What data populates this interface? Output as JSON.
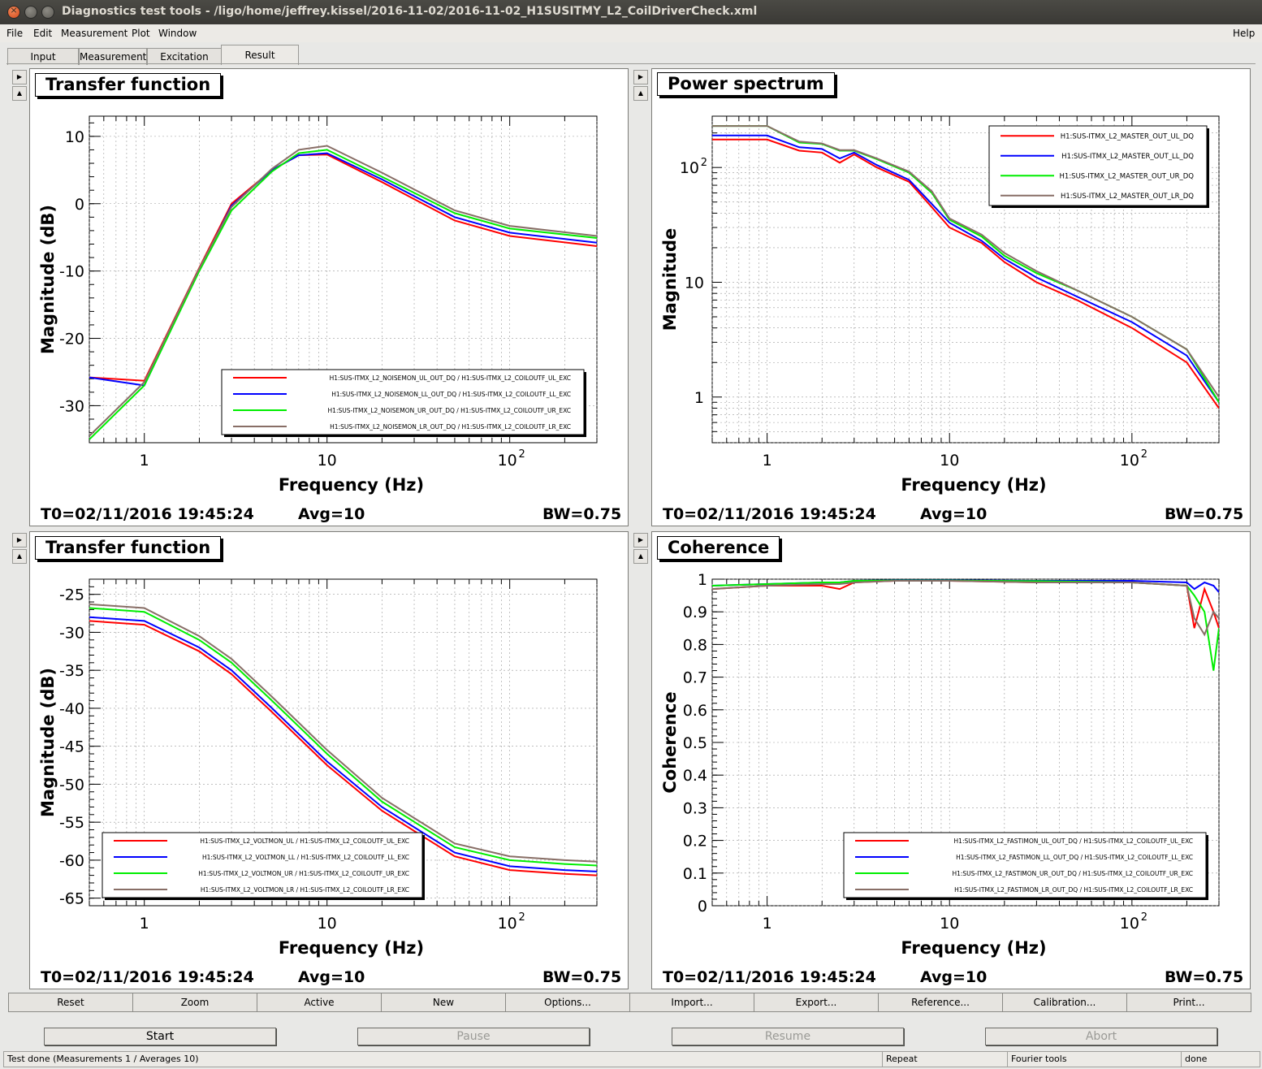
{
  "window": {
    "title": "Diagnostics test tools - /ligo/home/jeffrey.kissel/2016-11-02/2016-11-02_H1SUSITMY_L2_CoilDriverCheck.xml"
  },
  "menu": {
    "items": [
      "File",
      "Edit",
      "Measurement",
      "Plot",
      "Window"
    ],
    "help": "Help"
  },
  "tabs": [
    "Input",
    "Measurement",
    "Excitation",
    "Result"
  ],
  "active_tab": "Result",
  "panels": [
    {
      "title": "Transfer function",
      "t0": "T0=02/11/2016 19:45:24",
      "avg": "Avg=10",
      "bw": "BW=0.75"
    },
    {
      "title": "Power spectrum",
      "t0": "T0=02/11/2016 19:45:24",
      "avg": "Avg=10",
      "bw": "BW=0.75"
    },
    {
      "title": "Transfer function",
      "t0": "T0=02/11/2016 19:45:24",
      "avg": "Avg=10",
      "bw": "BW=0.75"
    },
    {
      "title": "Coherence",
      "t0": "T0=02/11/2016 19:45:24",
      "avg": "Avg=10",
      "bw": "BW=0.75"
    }
  ],
  "toolbar": [
    "Reset",
    "Zoom",
    "Active",
    "New",
    "Options...",
    "Import...",
    "Export...",
    "Reference...",
    "Calibration...",
    "Print..."
  ],
  "controls": {
    "start": "Start",
    "pause": "Pause",
    "resume": "Resume",
    "abort": "Abort"
  },
  "status": {
    "main": "Test done (Measurements 1 / Averages 10)",
    "mode": "Repeat",
    "tool": "Fourier tools",
    "state": "done"
  },
  "chart_data": [
    {
      "type": "line",
      "title": "Transfer function",
      "xlabel": "Frequency (Hz)",
      "ylabel": "Magnitude (dB)",
      "xscale": "log",
      "xlim": [
        0.5,
        300
      ],
      "ylim": [
        -35.5,
        13
      ],
      "xticks": [
        "1",
        "10",
        "10^2"
      ],
      "yticks": [
        10,
        0,
        -10,
        -20,
        -30
      ],
      "grid": true,
      "legend": "bottom-right",
      "x": [
        0.5,
        1,
        2,
        3,
        5,
        7,
        10,
        20,
        50,
        100,
        300
      ],
      "series": [
        {
          "name": "H1:SUS-ITMX_L2_NOISEMON_UL_OUT_DQ / H1:SUS-ITMX_L2_COILOUTF_UL_EXC",
          "color": "#ff0000",
          "values": [
            -25.8,
            -26.3,
            -9.5,
            0,
            5,
            7.2,
            7.3,
            3.2,
            -2.5,
            -4.8,
            -6.3
          ]
        },
        {
          "name": "H1:SUS-ITMX_L2_NOISEMON_LL_OUT_DQ / H1:SUS-ITMX_L2_COILOUTF_LL_EXC",
          "color": "#0000ff",
          "values": [
            -25.8,
            -27.0,
            -9.8,
            -0.3,
            5,
            7.2,
            7.5,
            3.6,
            -2.0,
            -4.3,
            -5.8
          ]
        },
        {
          "name": "H1:SUS-ITMX_L2_NOISEMON_UR_OUT_DQ / H1:SUS-ITMX_L2_COILOUTF_UR_EXC",
          "color": "#00ee00",
          "values": [
            -35.0,
            -27.0,
            -10.0,
            -1.0,
            4.8,
            7.5,
            8.0,
            4.0,
            -1.4,
            -3.7,
            -5.1
          ]
        },
        {
          "name": "H1:SUS-ITMX_L2_NOISEMON_LR_OUT_DQ / H1:SUS-ITMX_L2_COILOUTF_LR_EXC",
          "color": "#886e66",
          "values": [
            -34.5,
            -26.5,
            -9.6,
            -0.5,
            5.2,
            8.0,
            8.6,
            4.6,
            -1.0,
            -3.3,
            -4.8
          ]
        }
      ]
    },
    {
      "type": "line",
      "title": "Power spectrum",
      "xlabel": "Frequency (Hz)",
      "ylabel": "Magnitude",
      "xscale": "log",
      "yscale": "log",
      "xlim": [
        0.5,
        300
      ],
      "ylim": [
        0.4,
        280
      ],
      "xticks": [
        "1",
        "10",
        "10^2"
      ],
      "yticks": [
        "1",
        "10",
        "10^2"
      ],
      "grid": true,
      "legend": "top-right",
      "x": [
        0.5,
        1,
        1.5,
        2,
        2.5,
        3,
        4,
        6,
        8,
        10,
        15,
        20,
        30,
        50,
        100,
        200,
        300
      ],
      "series": [
        {
          "name": "H1:SUS-ITMX_L2_MASTER_OUT_UL_DQ",
          "color": "#ff0000",
          "values": [
            175,
            175,
            140,
            135,
            110,
            130,
            100,
            75,
            45,
            30,
            22,
            15,
            10,
            7,
            4,
            2,
            0.8
          ]
        },
        {
          "name": "H1:SUS-ITMX_L2_MASTER_OUT_LL_DQ",
          "color": "#0000ff",
          "values": [
            190,
            190,
            150,
            145,
            120,
            135,
            105,
            78,
            48,
            33,
            23,
            16,
            11,
            7.5,
            4.5,
            2.3,
            0.9
          ]
        },
        {
          "name": "H1:SUS-ITMX_L2_MASTER_OUT_UR_DQ",
          "color": "#00ee00",
          "values": [
            230,
            230,
            165,
            160,
            140,
            140,
            118,
            90,
            60,
            35,
            25,
            17,
            12,
            8.5,
            5,
            2.6,
            0.9
          ]
        },
        {
          "name": "H1:SUS-ITMX_L2_MASTER_OUT_LR_DQ",
          "color": "#886e66",
          "values": [
            230,
            230,
            168,
            162,
            142,
            142,
            120,
            92,
            62,
            36,
            26,
            18,
            12.5,
            8.5,
            5,
            2.6,
            1.0
          ]
        }
      ]
    },
    {
      "type": "line",
      "title": "Transfer function",
      "xlabel": "Frequency (Hz)",
      "ylabel": "Magnitude (dB)",
      "xscale": "log",
      "xlim": [
        0.5,
        300
      ],
      "ylim": [
        -66,
        -23
      ],
      "xticks": [
        "1",
        "10",
        "10^2"
      ],
      "yticks": [
        -25,
        -30,
        -35,
        -40,
        -45,
        -50,
        -55,
        -60,
        -65
      ],
      "grid": true,
      "legend": "bottom-left",
      "x": [
        0.5,
        1,
        2,
        3,
        5,
        10,
        20,
        50,
        100,
        200,
        300
      ],
      "series": [
        {
          "name": "H1:SUS-ITMX_L2_VOLTMON_UL / H1:SUS-ITMX_L2_COILOUTF_UL_EXC",
          "color": "#ff0000",
          "values": [
            -28.5,
            -29,
            -32.5,
            -35.5,
            -40.5,
            -47.5,
            -53.5,
            -59.5,
            -61.3,
            -61.8,
            -62
          ]
        },
        {
          "name": "H1:SUS-ITMX_L2_VOLTMON_LL / H1:SUS-ITMX_L2_COILOUTF_LL_EXC",
          "color": "#0000ff",
          "values": [
            -28,
            -28.5,
            -32,
            -35,
            -40,
            -47,
            -53,
            -59,
            -60.8,
            -61.3,
            -61.5
          ]
        },
        {
          "name": "H1:SUS-ITMX_L2_VOLTMON_UR / H1:SUS-ITMX_L2_COILOUTF_UR_EXC",
          "color": "#00ee00",
          "values": [
            -26.8,
            -27.3,
            -31,
            -34,
            -39,
            -46,
            -52.3,
            -58.3,
            -60,
            -60.5,
            -60.7
          ]
        },
        {
          "name": "H1:SUS-ITMX_L2_VOLTMON_LR / H1:SUS-ITMX_L2_COILOUTF_LR_EXC",
          "color": "#886e66",
          "values": [
            -26.3,
            -26.8,
            -30.5,
            -33.5,
            -38.5,
            -45.5,
            -51.8,
            -57.8,
            -59.5,
            -60,
            -60.2
          ]
        }
      ]
    },
    {
      "type": "line",
      "title": "Coherence",
      "xlabel": "Frequency (Hz)",
      "ylabel": "Coherence",
      "xscale": "log",
      "xlim": [
        0.5,
        300
      ],
      "ylim": [
        0,
        1
      ],
      "xticks": [
        "1",
        "10",
        "10^2"
      ],
      "yticks": [
        0,
        0.1,
        0.2,
        0.3,
        0.4,
        0.5,
        0.6,
        0.7,
        0.8,
        0.9,
        1
      ],
      "grid": true,
      "legend": "bottom-right",
      "x": [
        0.5,
        1,
        2,
        2.5,
        3,
        5,
        10,
        30,
        100,
        200,
        220,
        250,
        280,
        300
      ],
      "series": [
        {
          "name": "H1:SUS-ITMX_L2_FASTIMON_UL_OUT_DQ / H1:SUS-ITMX_L2_COILOUTF_UL_EXC",
          "color": "#ff0000",
          "values": [
            0.97,
            0.98,
            0.98,
            0.97,
            0.99,
            0.995,
            0.995,
            0.99,
            0.99,
            0.98,
            0.85,
            0.97,
            0.9,
            0.85
          ]
        },
        {
          "name": "H1:SUS-ITMX_L2_FASTIMON_LL_OUT_DQ / H1:SUS-ITMX_L2_COILOUTF_LL_EXC",
          "color": "#0000ff",
          "values": [
            0.98,
            0.985,
            0.99,
            0.99,
            0.995,
            0.997,
            0.997,
            0.995,
            0.995,
            0.99,
            0.97,
            0.99,
            0.98,
            0.96
          ]
        },
        {
          "name": "H1:SUS-ITMX_L2_FASTIMON_UR_OUT_DQ / H1:SUS-ITMX_L2_COILOUTF_UR_EXC",
          "color": "#00ee00",
          "values": [
            0.98,
            0.985,
            0.99,
            0.99,
            0.995,
            0.996,
            0.996,
            0.994,
            0.99,
            0.98,
            0.95,
            0.9,
            0.72,
            0.85
          ]
        },
        {
          "name": "H1:SUS-ITMX_L2_FASTIMON_LR_OUT_DQ / H1:SUS-ITMX_L2_COILOUTF_LR_EXC",
          "color": "#886e66",
          "values": [
            0.97,
            0.98,
            0.985,
            0.985,
            0.99,
            0.995,
            0.995,
            0.99,
            0.99,
            0.98,
            0.88,
            0.83,
            0.9,
            0.88
          ]
        }
      ]
    }
  ]
}
